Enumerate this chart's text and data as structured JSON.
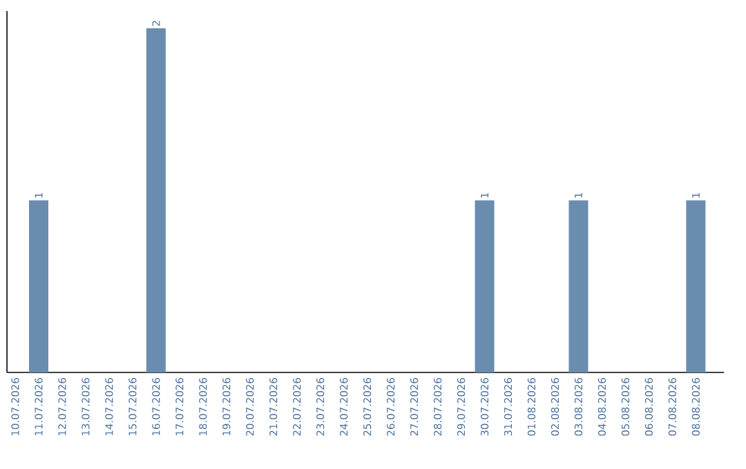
{
  "chart_data": {
    "type": "bar",
    "categories": [
      "10.07.2026",
      "11.07.2026",
      "12.07.2026",
      "13.07.2026",
      "14.07.2026",
      "15.07.2026",
      "16.07.2026",
      "17.07.2026",
      "18.07.2026",
      "19.07.2026",
      "20.07.2026",
      "21.07.2026",
      "22.07.2026",
      "23.07.2026",
      "24.07.2026",
      "25.07.2026",
      "26.07.2026",
      "27.07.2026",
      "28.07.2026",
      "29.07.2026",
      "30.07.2026",
      "31.07.2026",
      "01.08.2026",
      "02.08.2026",
      "03.08.2026",
      "04.08.2026",
      "05.08.2026",
      "06.08.2026",
      "07.08.2026",
      "08.08.2026"
    ],
    "values": [
      0,
      1,
      0,
      0,
      0,
      0,
      2,
      0,
      0,
      0,
      0,
      0,
      0,
      0,
      0,
      0,
      0,
      0,
      0,
      0,
      1,
      0,
      0,
      0,
      1,
      0,
      0,
      0,
      0,
      1
    ],
    "value_labels": [
      null,
      "1",
      null,
      null,
      null,
      null,
      "2",
      null,
      null,
      null,
      null,
      null,
      null,
      null,
      null,
      null,
      null,
      null,
      null,
      null,
      "1",
      null,
      null,
      null,
      "1",
      null,
      null,
      null,
      null,
      "1"
    ],
    "color": "#6a8caf",
    "ylim": [
      0,
      2.1
    ],
    "tick_labels": "x"
  }
}
